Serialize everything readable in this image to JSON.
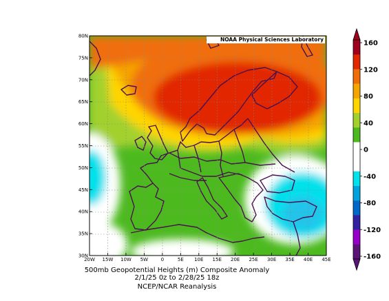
{
  "map": {
    "title": "500mb Geopotential Heights (m)   Composite Anomaly",
    "period": "2/1/25 0z  to 2/28/25 18z",
    "source": "NCEP/NCAR Reanalysis",
    "credit": "NOAA Physical Sciences Laboratory",
    "lon_ticks": [
      "20W",
      "15W",
      "10W",
      "5W",
      "0",
      "5E",
      "10E",
      "15E",
      "20E",
      "25E",
      "30E",
      "35E",
      "40E",
      "45E"
    ],
    "lat_ticks": [
      "80N",
      "75N",
      "70N",
      "65N",
      "60N",
      "55N",
      "50N",
      "45N",
      "40N",
      "35N",
      "30N"
    ],
    "lon_range": [
      -20,
      45
    ],
    "lat_range": [
      30,
      80
    ],
    "grid": true
  },
  "colorbar": {
    "ticks": [
      "160",
      "120",
      "80",
      "40",
      "0",
      "-40",
      "-80",
      "-120",
      "-160"
    ],
    "colors": [
      "#a0001e",
      "#e12800",
      "#f06e0a",
      "#f5a500",
      "#ffd500",
      "#a2d12d",
      "#4cba1e",
      "#ffffff",
      "#ffffff",
      "#00e1ec",
      "#00a3dd",
      "#0068c8",
      "#3221a0",
      "#9800c9",
      "#5a1478"
    ]
  },
  "legend": {
    "levels": [
      "-160",
      "-120",
      "-80",
      "-40",
      "0",
      "40",
      "80",
      "120",
      "160"
    ]
  }
}
